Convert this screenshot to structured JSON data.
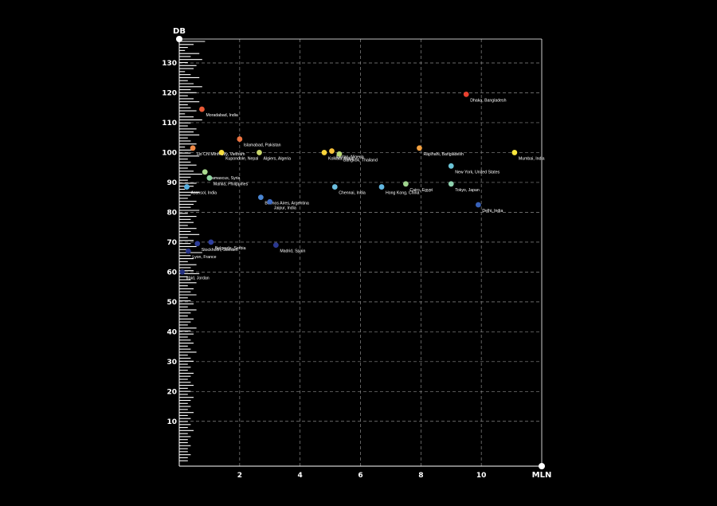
{
  "chart_data": {
    "type": "scatter",
    "xlabel": "MLN",
    "ylabel": "DB",
    "xlim": [
      0,
      12
    ],
    "ylim": [
      -5,
      138
    ],
    "x_ticks": [
      2,
      4,
      6,
      8,
      10
    ],
    "y_ticks": [
      10,
      20,
      30,
      40,
      50,
      60,
      70,
      80,
      90,
      100,
      110,
      120,
      130
    ],
    "grid": true,
    "colors": {
      "background": "#000000",
      "axis": "#ffffff",
      "grid": "#8a8a8a",
      "noise_bars": "#ffffff"
    },
    "points": [
      {
        "label": "Dhaka, Bangladesh",
        "x": 9.5,
        "y": 119.5,
        "color": "#e8412f"
      },
      {
        "label": "Moradabad, India",
        "x": 0.75,
        "y": 114.5,
        "color": "#ea5a36"
      },
      {
        "label": "Islamabad, Pakistan",
        "x": 2.0,
        "y": 104.5,
        "color": "#ee7440"
      },
      {
        "label": "Ho Chi Minh City, Vietnam",
        "x": 0.45,
        "y": 101.5,
        "color": "#f08a46"
      },
      {
        "label": "Rajshahi, Bangladesh",
        "x": 7.95,
        "y": 101.5,
        "color": "#f2a040"
      },
      {
        "label": "Ibadan, Nigeria",
        "x": 5.05,
        "y": 100.5,
        "color": "#f5c03a"
      },
      {
        "label": "Kolkata, India",
        "x": 4.8,
        "y": 100.0,
        "color": "#f8d43a"
      },
      {
        "label": "Kupondole, Nepal",
        "x": 1.4,
        "y": 100.0,
        "color": "#f8de3f"
      },
      {
        "label": "Mumbai, India",
        "x": 11.1,
        "y": 100.0,
        "color": "#f8e63d"
      },
      {
        "label": "Algiers, Algeria",
        "x": 2.65,
        "y": 100.0,
        "color": "#c9d86a"
      },
      {
        "label": "Bangkok, Thailand",
        "x": 5.3,
        "y": 99.5,
        "color": "#b9d874"
      },
      {
        "label": "New York, United States",
        "x": 9.0,
        "y": 95.5,
        "color": "#6bc4d6"
      },
      {
        "label": "Damascus, Syria",
        "x": 0.85,
        "y": 93.5,
        "color": "#a9d88e"
      },
      {
        "label": "Manila, Philippines",
        "x": 1.0,
        "y": 91.5,
        "color": "#8fd3a0"
      },
      {
        "label": "Cairo, Egypt",
        "x": 7.5,
        "y": 89.5,
        "color": "#9fd48e"
      },
      {
        "label": "Tokyo, Japan",
        "x": 9.0,
        "y": 89.5,
        "color": "#8ed1ae"
      },
      {
        "label": "Chennai, India",
        "x": 5.15,
        "y": 88.5,
        "color": "#6cbfe0"
      },
      {
        "label": "Hong Kong, China",
        "x": 6.7,
        "y": 88.5,
        "color": "#62b8e2"
      },
      {
        "label": "Asansol, India",
        "x": 0.25,
        "y": 88.5,
        "color": "#55aee0"
      },
      {
        "label": "Buenos Aires, Argentina",
        "x": 2.7,
        "y": 85.0,
        "color": "#4a86d2"
      },
      {
        "label": "Jaipur, India",
        "x": 3.0,
        "y": 83.5,
        "color": "#3f6cc4"
      },
      {
        "label": "Delhi, India",
        "x": 9.9,
        "y": 82.5,
        "color": "#3760b8"
      },
      {
        "label": "Belgrade, Serbia",
        "x": 1.05,
        "y": 70.0,
        "color": "#2f40a0"
      },
      {
        "label": "Stockholm, Sweden",
        "x": 0.6,
        "y": 69.5,
        "color": "#2c3c98"
      },
      {
        "label": "Madrid, Spain",
        "x": 3.2,
        "y": 69.0,
        "color": "#2a3890"
      },
      {
        "label": "Lyon, France",
        "x": 0.3,
        "y": 67.0,
        "color": "#283488"
      },
      {
        "label": "Irbid, Jordan",
        "x": 0.1,
        "y": 60.0,
        "color": "#243080"
      }
    ],
    "noise_distribution": [
      0.9,
      0.5,
      0.3,
      0.2,
      0.7,
      0.4,
      0.8,
      0.3,
      0.6,
      0.5,
      0.2,
      0.4,
      0.7,
      0.3,
      0.5,
      0.8,
      0.4,
      0.6,
      0.3,
      0.5,
      0.7,
      0.3,
      0.4,
      0.6,
      0.2,
      0.5,
      0.8,
      0.4,
      0.3,
      0.6,
      0.5,
      0.7,
      0.3,
      0.4,
      0.6,
      0.2,
      0.5,
      0.4,
      0.7,
      0.3,
      0.4,
      0.6,
      0.3,
      0.5,
      0.8,
      0.4,
      0.3,
      0.6,
      0.5,
      0.2,
      0.7,
      0.4,
      0.3,
      0.6,
      0.5,
      0.4,
      0.7,
      0.3,
      0.6,
      0.4,
      0.5,
      0.3,
      0.6,
      0.4,
      0.7,
      0.3,
      0.5,
      0.4,
      0.6,
      0.3,
      0.8,
      0.4,
      0.5,
      0.3,
      0.6,
      0.4,
      0.5,
      0.7,
      0.3,
      0.4,
      0.6,
      0.3,
      0.5,
      0.4,
      0.6,
      0.3,
      0.4,
      0.5,
      0.3,
      0.6,
      0.4,
      0.3,
      0.5,
      0.4,
      0.3,
      0.6,
      0.4,
      0.5,
      0.3,
      0.4,
      0.5,
      0.3,
      0.4,
      0.6,
      0.3,
      0.4,
      0.5,
      0.3,
      0.4,
      0.3,
      0.5,
      0.4,
      0.3,
      0.4,
      0.5,
      0.3,
      0.4,
      0.3,
      0.5,
      0.4,
      0.3,
      0.4,
      0.3,
      0.5,
      0.3,
      0.4,
      0.3,
      0.4,
      0.3,
      0.5,
      0.3,
      0.4,
      0.3,
      0.3,
      0.4,
      0.3,
      0.3,
      0.4,
      0.3,
      0.3
    ]
  }
}
